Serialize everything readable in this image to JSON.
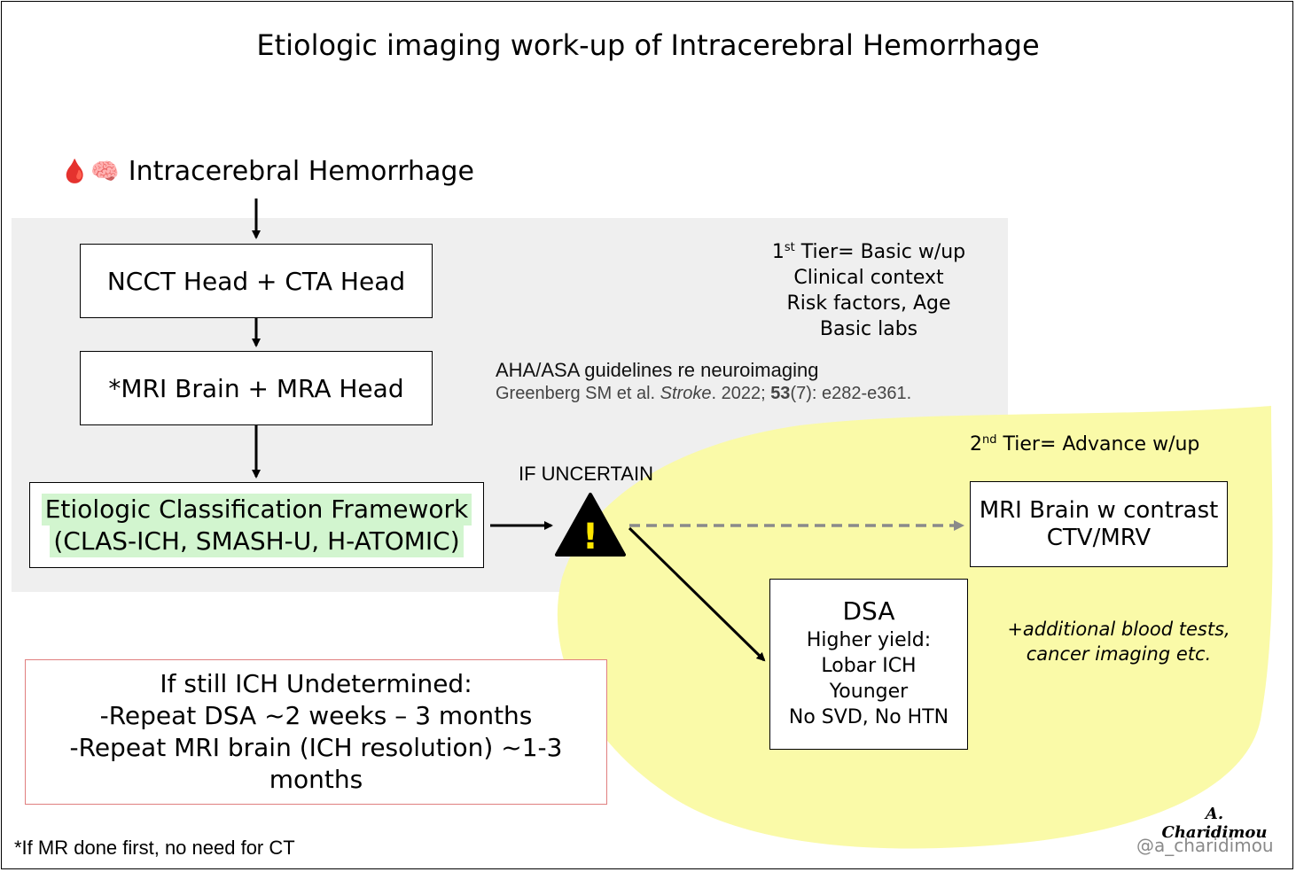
{
  "title": "Etiologic imaging work-up of Intracerebral Hemorrhage",
  "header": {
    "icons": [
      "blood-drop-icon",
      "brain-icon"
    ],
    "blood_drop_glyph": "🩸",
    "brain_glyph": "🧠",
    "label": "Intracerebral Hemorrhage"
  },
  "tier1": {
    "tier_number": "1",
    "tier_suffix": "st",
    "tier_rest": " Tier= Basic w/up",
    "lines": [
      "Clinical context",
      "Risk factors, Age",
      "Basic labs"
    ]
  },
  "guideline": {
    "line1": "AHA/ASA guidelines re neuroimaging",
    "authors": "Greenberg SM et al. ",
    "journal": "Stroke",
    "year": ". 2022; ",
    "volume": "53",
    "issue_pages": "(7): e282-e361."
  },
  "boxes": {
    "ncct": "NCCT Head + CTA Head",
    "mri": "*MRI Brain + MRA Head",
    "etiologic_line1": "Etiologic Classification Framework",
    "etiologic_line2": "(CLAS-ICH, SMASH-U, H-ATOMIC)"
  },
  "if_uncertain": "IF UNCERTAIN",
  "warning_glyph": "!",
  "tier2": {
    "tier_number": "2",
    "tier_suffix": "nd",
    "tier_rest": " Tier= Advance w/up"
  },
  "contrast_box": {
    "line1": "MRI Brain w contrast",
    "line2": "CTV/MRV"
  },
  "dsa_box": {
    "title": "DSA",
    "lines": [
      "Higher yield:",
      "Lobar ICH",
      "Younger",
      "No SVD, No HTN"
    ]
  },
  "additional": {
    "line1": "+additional blood tests,",
    "line2": "cancer imaging etc."
  },
  "undetermined_box": {
    "line1": "If still ICH Undetermined:",
    "line2": "-Repeat DSA ~2 weeks – 3 months",
    "line3": "-Repeat MRI brain (ICH resolution) ~1-3",
    "line4": "months"
  },
  "footnote": "*If MR done first, no need for CT",
  "signature": "A. Charidimou",
  "handle": "@a_charidimou",
  "colors": {
    "gray_panel": "#efefef",
    "yellow_blob": "#fafaa8",
    "highlight_green": "#d2f5cf",
    "undetermined_border": "#e07f7f",
    "dashed_arrow": "#8a8a8a"
  }
}
